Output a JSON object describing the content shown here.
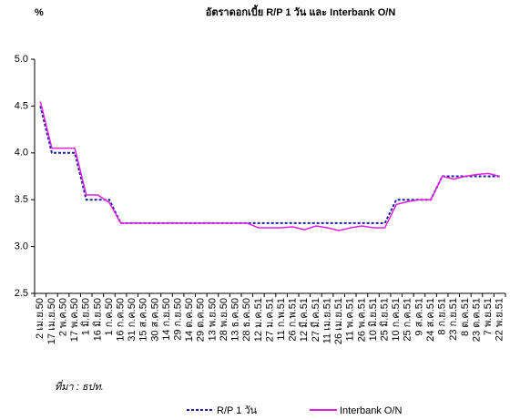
{
  "chart_data": {
    "type": "line",
    "title": "อัตราดอกเบี้ย R/P 1 วัน และ Interbank O/N",
    "y_label": "%",
    "source": "ที่มา : ธปท.",
    "categories": [
      "2 เม.ย.50",
      "17 เม.ย.50",
      "2 พ.ค.50",
      "17 พ.ค.50",
      "1 มิ.ย.50",
      "16 มิ.ย.50",
      "1 ก.ค.50",
      "16 ก.ค.50",
      "31 ก.ค.50",
      "15 ส.ค.50",
      "30 ส.ค.50",
      "14 ก.ย.50",
      "29 ก.ย.50",
      "14 ต.ค.50",
      "29 ต.ค.50",
      "13 พ.ย.50",
      "28 พ.ย.50",
      "13 ธ.ค.50",
      "28 ธ.ค.50",
      "12 ม.ค.51",
      "27 ม.ค.51",
      "11 ก.พ.51",
      "26 ก.พ.51",
      "12 มี.ค.51",
      "27 มี.ค.51",
      "11 เม.ย.51",
      "26 เม.ย.51",
      "11 พ.ค.51",
      "26 พ.ค.51",
      "10 มิ.ย.51",
      "25 มิ.ย.51",
      "10 ก.ค.51",
      "25 ก.ค.51",
      "9 ส.ค.51",
      "24 ส.ค.51",
      "8 ก.ย.51",
      "23 ก.ย.51",
      "8 ต.ค.51",
      "23 ต.ค.51",
      "7 พ.ย.51",
      "22 พ.ย.51"
    ],
    "series": [
      {
        "name": "R/P 1 วัน",
        "color": "#1f1f9f",
        "dash": true,
        "values": [
          4.5,
          4.0,
          4.0,
          4.0,
          3.5,
          3.5,
          3.5,
          3.25,
          3.25,
          3.25,
          3.25,
          3.25,
          3.25,
          3.25,
          3.25,
          3.25,
          3.25,
          3.25,
          3.25,
          3.25,
          3.25,
          3.25,
          3.25,
          3.25,
          3.25,
          3.25,
          3.25,
          3.25,
          3.25,
          3.25,
          3.25,
          3.5,
          3.5,
          3.5,
          3.5,
          3.75,
          3.75,
          3.75,
          3.75,
          3.75,
          3.75
        ]
      },
      {
        "name": "Interbank O/N",
        "color": "#e020e0",
        "dash": false,
        "values": [
          4.55,
          4.05,
          4.05,
          4.05,
          3.55,
          3.55,
          3.47,
          3.25,
          3.25,
          3.25,
          3.25,
          3.25,
          3.25,
          3.25,
          3.25,
          3.25,
          3.25,
          3.25,
          3.25,
          3.2,
          3.2,
          3.2,
          3.21,
          3.18,
          3.22,
          3.2,
          3.17,
          3.2,
          3.22,
          3.2,
          3.2,
          3.45,
          3.48,
          3.5,
          3.5,
          3.75,
          3.72,
          3.75,
          3.77,
          3.78,
          3.75
        ]
      }
    ],
    "ylim": [
      2.5,
      5.0
    ],
    "yticks": [
      2.5,
      {
        "value": 3.0,
        "label": "3.0"
      },
      3.5,
      {
        "value": 4.0,
        "label": "4.0"
      },
      4.5,
      {
        "value": 5.0,
        "label": "5.0"
      }
    ],
    "grid": false
  }
}
